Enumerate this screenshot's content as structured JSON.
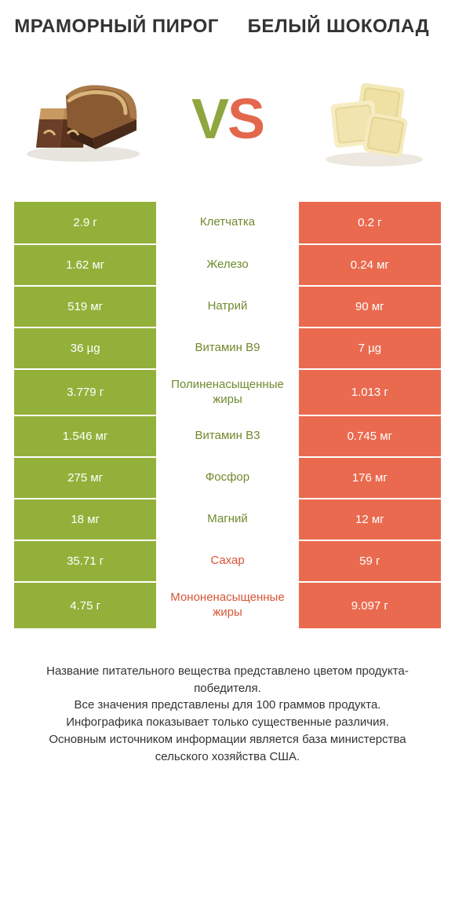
{
  "titles": {
    "left": "МРАМОРНЫЙ ПИРОГ",
    "right": "БЕЛЫЙ ШОКОЛАД"
  },
  "vs": {
    "v": "V",
    "s": "S"
  },
  "colors": {
    "green": "#93b13a",
    "orange": "#ea6a4f",
    "label_green": "#6f8a2d",
    "label_orange": "#d85538",
    "white": "#ffffff",
    "text": "#333333"
  },
  "rows": [
    {
      "left": "2.9 г",
      "label": "Клетчатка",
      "right": "0.2 г",
      "winner": "left"
    },
    {
      "left": "1.62 мг",
      "label": "Железо",
      "right": "0.24 мг",
      "winner": "left"
    },
    {
      "left": "519 мг",
      "label": "Натрий",
      "right": "90 мг",
      "winner": "left"
    },
    {
      "left": "36 µg",
      "label": "Витамин B9",
      "right": "7 µg",
      "winner": "left"
    },
    {
      "left": "3.779 г",
      "label": "Полиненасыщенные жиры",
      "right": "1.013 г",
      "winner": "left"
    },
    {
      "left": "1.546 мг",
      "label": "Витамин B3",
      "right": "0.745 мг",
      "winner": "left"
    },
    {
      "left": "275 мг",
      "label": "Фосфор",
      "right": "176 мг",
      "winner": "left"
    },
    {
      "left": "18 мг",
      "label": "Магний",
      "right": "12 мг",
      "winner": "left"
    },
    {
      "left": "35.71 г",
      "label": "Сахар",
      "right": "59 г",
      "winner": "right"
    },
    {
      "left": "4.75 г",
      "label": "Мононенасыщенные жиры",
      "right": "9.097 г",
      "winner": "right"
    }
  ],
  "footer": {
    "l1": "Название питательного вещества представлено цветом продукта-победителя.",
    "l2": "Все значения представлены для 100 граммов продукта.",
    "l3": "Инфографика показывает только существенные различия.",
    "l4": "Основным источником информации является база министерства сельского хозяйства США."
  }
}
